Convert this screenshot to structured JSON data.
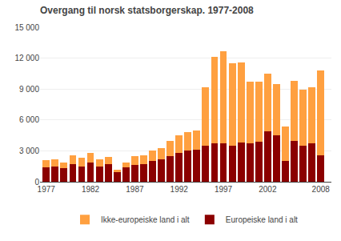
{
  "chart_data": {
    "type": "bar",
    "title": "Overgang til norsk statsborgerskap. 1977-2008",
    "x": [
      1977,
      1978,
      1979,
      1980,
      1981,
      1982,
      1983,
      1984,
      1985,
      1986,
      1987,
      1988,
      1989,
      1990,
      1991,
      1992,
      1993,
      1994,
      1995,
      1996,
      1997,
      1998,
      1999,
      2000,
      2001,
      2002,
      2003,
      2004,
      2005,
      2006,
      2007,
      2008
    ],
    "series": [
      {
        "name": "Europeiske land i alt",
        "color": "#8B0000",
        "values": [
          1400,
          1500,
          1300,
          1700,
          1500,
          1900,
          1500,
          1700,
          900,
          1400,
          1600,
          1700,
          2000,
          2200,
          2500,
          2800,
          3000,
          3100,
          3500,
          3700,
          3700,
          3500,
          3800,
          3700,
          3900,
          4900,
          4500,
          2000,
          4000,
          3500,
          3700,
          2600
        ]
      },
      {
        "name": "Ikke-europeiske land i alt",
        "color": "#FFA040",
        "values": [
          700,
          700,
          600,
          900,
          800,
          900,
          700,
          700,
          300,
          500,
          900,
          900,
          1000,
          1100,
          1500,
          1700,
          1800,
          1900,
          5700,
          8400,
          9000,
          8000,
          7800,
          6000,
          5800,
          5600,
          5000,
          3400,
          5800,
          5400,
          5500,
          8200
        ]
      }
    ],
    "stacked": true,
    "xlim": [
      1976.3,
      2009.2
    ],
    "xticks": [
      1977,
      1982,
      1987,
      1992,
      1997,
      2002,
      2008
    ],
    "ylim": [
      0,
      15000
    ],
    "yticks": [
      0,
      {
        "value": 3000,
        "label": "3 000"
      },
      {
        "value": 6000,
        "label": "6 000"
      },
      {
        "value": 9000,
        "label": "9 000"
      },
      {
        "value": 12000,
        "label": "12 000"
      },
      {
        "value": 15000,
        "label": "15 000"
      }
    ],
    "grid": true,
    "legend": "bottom"
  }
}
